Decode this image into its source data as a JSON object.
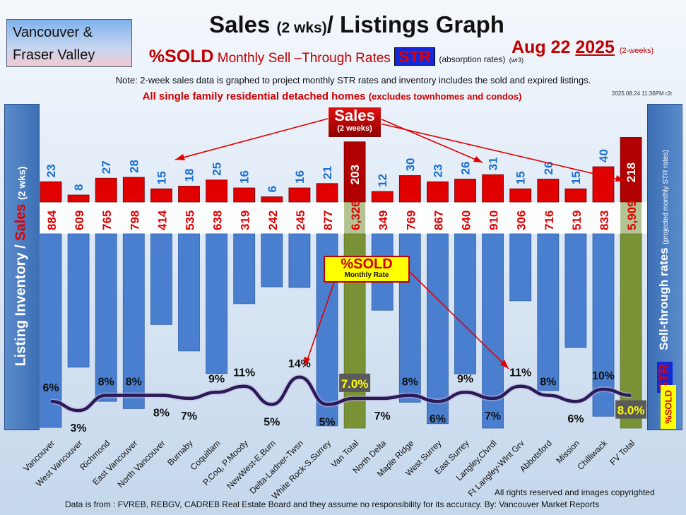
{
  "header": {
    "region_line1": "Vancouver &",
    "region_line2": "Fraser Valley",
    "title_main": "Sales",
    "title_small": "(2 wks)",
    "title_rest": "/ Listings Graph",
    "sold_word": "%SOLD",
    "sold_rest": "Monthly Sell –Through Rates",
    "str_badge": "STR",
    "absorption": "(absorption rates)",
    "version": "(wr3)",
    "date_prefix": "Aug 22",
    "date_year": "2025",
    "date_suffix": "(2-weeks)",
    "note": "Note: 2-week sales data is graphed to project monthly STR rates and inventory includes the sold and expired listings.",
    "homes_main": "All single family residential detached homes",
    "homes_small": "(excludes townhomes and condos)",
    "stamp": "2025.08.24 11:36PM r2r"
  },
  "left_axis": {
    "part1": "Listing Inventory / ",
    "part2": "Sales",
    "part3": "(2 wks)"
  },
  "right_axis": {
    "main": "Sell-through rates",
    "small": "(projected monthly STR rates)",
    "str": "STR",
    "sold": "%SOLD"
  },
  "callouts": {
    "sales_main": "Sales",
    "sales_sub": "(2 weeks)",
    "sold_main": "%SOLD",
    "sold_sub": "Monthly Rate"
  },
  "footer": {
    "rights": "All rights reserved and  images copyrighted",
    "source": "Data is from : FVREB, REBGV, CADREB Real Estate Board and they assume no responsibility for its accuracy. By: Vancouver Market Reports"
  },
  "colors": {
    "sales_bar": "#e00000",
    "inventory_bar": "#4a7fd0",
    "total_bar": "#7a9236",
    "str_line": "#2a1a55",
    "sales_label": "#1a6fd0",
    "inventory_label": "#e00000"
  },
  "chart_data": {
    "type": "bar",
    "categories": [
      "Vancouver",
      "West Vancouver",
      "Richmond",
      "East Vancouver",
      "North Vancouver",
      "Burnaby",
      "Coquitlam",
      "P.Coq, P.Moody",
      "NewWest-E.Burn",
      "Delta-Ladner-Twsn",
      "White Rock-S.Surrey",
      "Van Total",
      "North Delta",
      "Maple Ridge",
      "West Surrey",
      "East Surrey",
      "Langley,Clvrdl",
      "Ft Langley-Wlnt Grv",
      "Abbotsford",
      "Mission",
      "Chilliwack",
      "FV Total"
    ],
    "series": [
      {
        "name": "Sales",
        "values": [
          23,
          8,
          27,
          28,
          15,
          18,
          25,
          16,
          6,
          16,
          21,
          203,
          12,
          30,
          23,
          26,
          31,
          15,
          26,
          15,
          40,
          218
        ]
      },
      {
        "name": "Listing Inventory",
        "values": [
          884,
          609,
          765,
          798,
          414,
          535,
          638,
          319,
          242,
          245,
          877,
          6326,
          349,
          769,
          867,
          640,
          910,
          306,
          716,
          519,
          833,
          5909
        ]
      },
      {
        "name": "%SOLD",
        "values": [
          6,
          3,
          8,
          8,
          8,
          7,
          9,
          11,
          5,
          14,
          5,
          7.0,
          7,
          8,
          6,
          9,
          7,
          11,
          8,
          6,
          10,
          8.0
        ]
      }
    ],
    "value_labels": {
      "sales": [
        "23",
        "8",
        "27",
        "28",
        "15",
        "18",
        "25",
        "16",
        "6",
        "16",
        "21",
        "203",
        "12",
        "30",
        "23",
        "26",
        "31",
        "15",
        "26",
        "15",
        "40",
        "218"
      ],
      "inventory": [
        "884",
        "609",
        "765",
        "798",
        "414",
        "535",
        "638",
        "319",
        "242",
        "245",
        "877",
        "6,326",
        "349",
        "769",
        "867",
        "640",
        "910",
        "306",
        "716",
        "519",
        "833",
        "5,909"
      ],
      "sold": [
        "6%",
        "3%",
        "8%",
        "8%",
        "8%",
        "7%",
        "9%",
        "11%",
        "5%",
        "14%",
        "5%",
        "7.0%",
        "7%",
        "8%",
        "6%",
        "9%",
        "7%",
        "11%",
        "8%",
        "6%",
        "10%",
        "8.0%"
      ]
    },
    "total_indices": [
      11,
      21
    ]
  }
}
